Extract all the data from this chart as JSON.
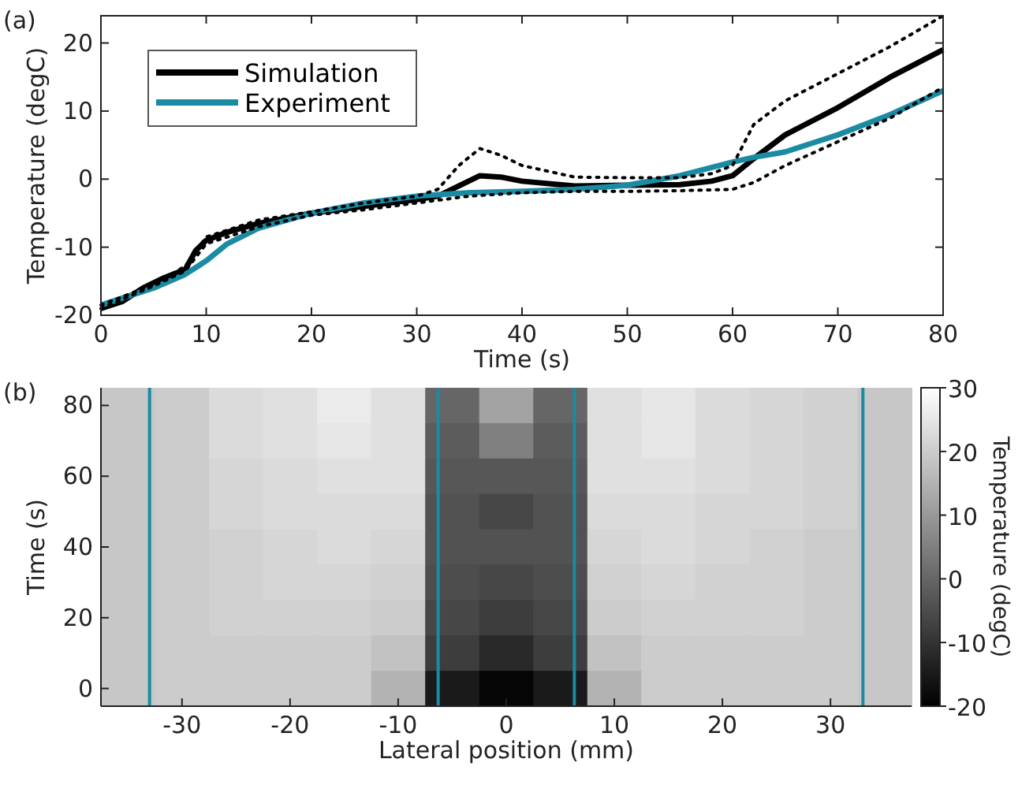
{
  "chart_data": [
    {
      "type": "line",
      "annotations": [
        "(a)"
      ],
      "xlabel": "Time (s)",
      "ylabel": "Temperature (degC)",
      "xlim": [
        0,
        80
      ],
      "xticks": [
        0,
        10,
        20,
        30,
        40,
        50,
        60,
        70,
        80
      ],
      "ylim": [
        -20,
        24
      ],
      "yticks": [
        -20,
        -10,
        0,
        10,
        20
      ],
      "grid": false,
      "legend": "top left",
      "series": [
        {
          "name": "Simulation",
          "color": "#000000",
          "line_style": "solid",
          "x": [
            0,
            2,
            4,
            6,
            8,
            9,
            10,
            12,
            15,
            20,
            25,
            30,
            32,
            34,
            36,
            38,
            40,
            45,
            50,
            55,
            58,
            60,
            62,
            65,
            70,
            75,
            80
          ],
          "values": [
            -19,
            -18,
            -16,
            -14.5,
            -13.3,
            -10.5,
            -9,
            -7.8,
            -6.5,
            -5,
            -4,
            -3,
            -2.5,
            -1,
            0.5,
            0.3,
            -0.3,
            -1,
            -0.9,
            -0.8,
            -0.3,
            0.5,
            3,
            6.5,
            10.5,
            15,
            19
          ]
        },
        {
          "name": "Experiment",
          "color": "#1b8ba3",
          "line_style": "solid",
          "x": [
            0,
            2,
            5,
            8,
            10,
            12,
            15,
            20,
            25,
            30,
            35,
            40,
            45,
            50,
            55,
            60,
            62,
            65,
            70,
            75,
            80
          ],
          "values": [
            -18.5,
            -17.5,
            -16,
            -14,
            -12,
            -9.5,
            -7.2,
            -5,
            -3.5,
            -2.5,
            -2,
            -1.8,
            -1.5,
            -0.9,
            0.5,
            2.5,
            3.2,
            4,
            6.5,
            9.5,
            13
          ]
        },
        {
          "color": "#000000",
          "line_style": "dotted",
          "x": [
            0,
            5,
            8,
            10,
            15,
            20,
            25,
            30,
            32,
            34,
            36,
            38,
            40,
            45,
            50,
            55,
            58,
            60,
            62,
            65,
            70,
            75,
            80
          ],
          "values": [
            -18.5,
            -15.5,
            -12.8,
            -8.5,
            -6,
            -4.8,
            -3.5,
            -2.5,
            -1.5,
            2,
            4.5,
            3.5,
            2,
            0.3,
            0.2,
            0.2,
            0.8,
            2,
            8,
            11.5,
            15.5,
            19.5,
            24
          ]
        },
        {
          "color": "#000000",
          "line_style": "dotted",
          "x": [
            0,
            5,
            8,
            10,
            15,
            20,
            25,
            30,
            35,
            40,
            45,
            50,
            55,
            60,
            62,
            65,
            70,
            75,
            80
          ],
          "values": [
            -19,
            -15.7,
            -13.5,
            -9.5,
            -7,
            -5.3,
            -4.5,
            -3.5,
            -2.5,
            -2,
            -1.8,
            -1.8,
            -1.7,
            -1.5,
            -0.5,
            2,
            5.5,
            9,
            13.5
          ]
        }
      ]
    },
    {
      "type": "heatmap",
      "annotations": [
        "(b)"
      ],
      "xlabel": "Lateral position (mm)",
      "ylabel": "Time (s)",
      "clabel": "Temperature (degC)",
      "clim": [
        -20,
        30
      ],
      "cticks": [
        -20,
        -10,
        0,
        10,
        20,
        30
      ],
      "categories": [
        null,
        "-30",
        null,
        "-20",
        null,
        "-10",
        null,
        "0",
        null,
        "10",
        null,
        "20",
        null,
        "30",
        null
      ],
      "y_categories": [
        "80",
        null,
        "60",
        null,
        "40",
        null,
        "20",
        null,
        "0"
      ],
      "cells": [
        [
          19,
          20,
          23,
          24,
          26,
          24,
          0,
          12,
          0,
          24,
          25,
          23,
          22,
          21,
          19
        ],
        [
          19,
          20,
          23,
          24,
          25,
          24,
          -2,
          5,
          -2,
          24,
          25,
          23,
          22,
          21,
          19
        ],
        [
          19,
          20,
          22,
          23,
          24,
          24,
          -3,
          -3,
          -3,
          24,
          24,
          23,
          22,
          21,
          19
        ],
        [
          19,
          20,
          22,
          23,
          23,
          23,
          -4,
          -6,
          -4,
          23,
          23,
          22,
          22,
          21,
          19
        ],
        [
          19,
          20,
          21,
          22,
          23,
          22,
          -4,
          -4,
          -4,
          22,
          23,
          22,
          21,
          20,
          19
        ],
        [
          19,
          20,
          21,
          22,
          22,
          21,
          -5,
          -6,
          -5,
          21,
          22,
          21,
          21,
          20,
          19
        ],
        [
          19,
          20,
          21,
          21,
          21,
          20,
          -6,
          -8,
          -6,
          20,
          21,
          21,
          21,
          20,
          19
        ],
        [
          19,
          20,
          20,
          20,
          20,
          18,
          -8,
          -12,
          -8,
          18,
          20,
          20,
          20,
          20,
          19
        ],
        [
          19,
          20,
          20,
          20,
          20,
          15,
          -15,
          -19,
          -15,
          15,
          20,
          20,
          20,
          20,
          19
        ]
      ]
    }
  ]
}
